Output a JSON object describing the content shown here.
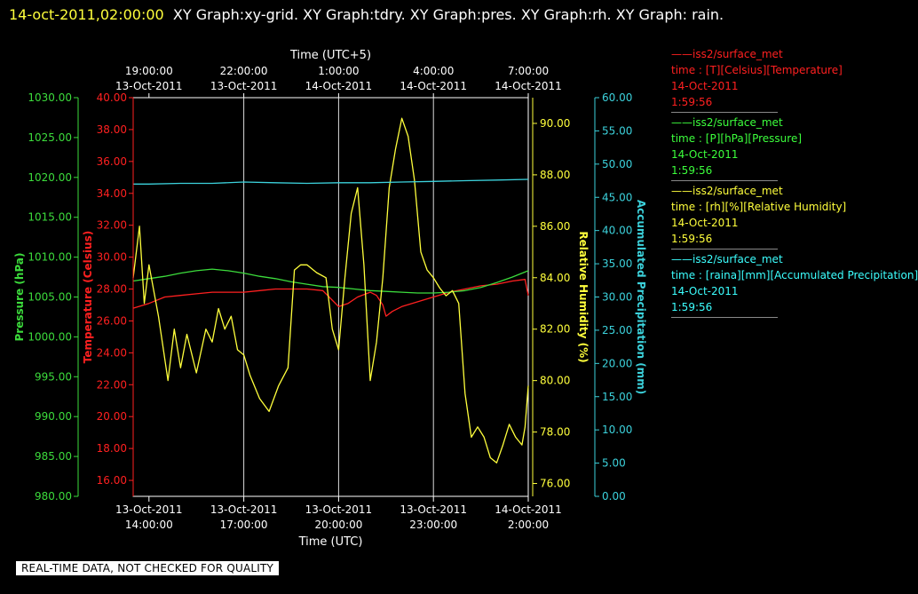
{
  "header": {
    "timestamp": "14-oct-2011,02:00:00",
    "description": "XY Graph:xy-grid.  XY Graph:tdry.  XY Graph:pres.  XY Graph:rh.  XY Graph: rain."
  },
  "quality_banner": "REAL-TIME DATA, NOT CHECKED FOR QUALITY",
  "legend": [
    {
      "name": "——iss2/surface_met",
      "line2": "time : [T][Celsius][Temperature]",
      "line3": "14-Oct-2011",
      "line4": "1:59:56",
      "color": "#ff2020"
    },
    {
      "name": "——iss2/surface_met",
      "line2": "time : [P][hPa][Pressure]",
      "line3": "14-Oct-2011",
      "line4": "1:59:56",
      "color": "#3cff3c"
    },
    {
      "name": "——iss2/surface_met",
      "line2": "time : [rh][%][Relative Humidity]",
      "line3": "14-Oct-2011",
      "line4": "1:59:56",
      "color": "#ffff3c"
    },
    {
      "name": "——iss2/surface_met",
      "line2": "time : [raina][mm][Accumulated Precipitation]",
      "line3": "14-Oct-2011",
      "line4": "1:59:56",
      "color": "#3cffff"
    }
  ],
  "chart_data": {
    "type": "line",
    "x_top_label": "Time (UTC+5)",
    "x_bottom_label": "Time (UTC)",
    "x_range_hours": [
      13.5,
      26
    ],
    "x_ticks_bottom": [
      {
        "date": "13-Oct-2011",
        "time": "14:00:00",
        "hour": 14
      },
      {
        "date": "13-Oct-2011",
        "time": "17:00:00",
        "hour": 17
      },
      {
        "date": "13-Oct-2011",
        "time": "20:00:00",
        "hour": 20
      },
      {
        "date": "13-Oct-2011",
        "time": "23:00:00",
        "hour": 23
      },
      {
        "date": "14-Oct-2011",
        "time": "2:00:00",
        "hour": 26
      }
    ],
    "x_ticks_top": [
      {
        "date": "13-Oct-2011",
        "time": "19:00:00",
        "hour": 14
      },
      {
        "date": "13-Oct-2011",
        "time": "22:00:00",
        "hour": 17
      },
      {
        "date": "14-Oct-2011",
        "time": "1:00:00",
        "hour": 20
      },
      {
        "date": "14-Oct-2011",
        "time": "4:00:00",
        "hour": 23
      },
      {
        "date": "14-Oct-2011",
        "time": "7:00:00",
        "hour": 26
      }
    ],
    "grid": true,
    "axes": {
      "pressure": {
        "label": "Pressure (hPa)",
        "color": "#3cdc3c",
        "ylim": [
          980,
          1030
        ],
        "ticks": [
          "980.00",
          "985.00",
          "990.00",
          "995.00",
          "1000.00",
          "1005.00",
          "1010.00",
          "1015.00",
          "1020.00",
          "1025.00",
          "1030.00"
        ]
      },
      "temperature": {
        "label": "Temperature (Celsius)",
        "color": "#ff2020",
        "ylim": [
          15,
          40
        ],
        "ticks": [
          "16.00",
          "18.00",
          "20.00",
          "22.00",
          "24.00",
          "26.00",
          "28.00",
          "30.00",
          "32.00",
          "34.00",
          "36.00",
          "38.00",
          "40.00"
        ]
      },
      "humidity": {
        "label": "Relative Humidity (%)",
        "color": "#ffff3c",
        "ylim": [
          75.5,
          91
        ],
        "ticks": [
          "76.00",
          "78.00",
          "80.00",
          "82.00",
          "84.00",
          "86.00",
          "88.00",
          "90.00"
        ]
      },
      "precip": {
        "label": "Accumulated Precipitation (mm)",
        "color": "#3cd2dc",
        "ylim": [
          0,
          60
        ],
        "ticks": [
          "0.00",
          "5.00",
          "10.00",
          "15.00",
          "20.00",
          "25.00",
          "30.00",
          "35.00",
          "40.00",
          "45.00",
          "50.00",
          "55.00",
          "60.00"
        ]
      }
    },
    "series": [
      {
        "name": "Temperature",
        "axis": "temperature",
        "color": "#ff2020",
        "x": [
          13.5,
          14,
          14.5,
          15,
          15.5,
          16,
          16.5,
          17,
          17.5,
          18,
          18.5,
          19,
          19.5,
          19.7,
          20,
          20.3,
          20.6,
          21,
          21.2,
          21.4,
          21.5,
          21.7,
          22,
          22.5,
          23,
          23.5,
          24,
          24.5,
          25,
          25.5,
          25.9,
          26
        ],
        "y": [
          26.8,
          27.1,
          27.5,
          27.6,
          27.7,
          27.8,
          27.8,
          27.8,
          27.9,
          28.0,
          28.0,
          28.0,
          27.9,
          27.5,
          26.9,
          27.1,
          27.5,
          27.8,
          27.6,
          27.0,
          26.3,
          26.6,
          26.9,
          27.2,
          27.5,
          27.8,
          28.0,
          28.2,
          28.3,
          28.5,
          28.6,
          27.6
        ]
      },
      {
        "name": "Pressure",
        "axis": "pressure",
        "color": "#3cdc3c",
        "x": [
          13.5,
          14,
          14.5,
          15,
          15.5,
          16,
          16.5,
          17,
          17.5,
          18,
          18.5,
          19,
          19.5,
          20,
          20.5,
          21,
          21.5,
          22,
          22.5,
          23,
          23.5,
          24,
          24.5,
          25,
          25.5,
          26
        ],
        "y": [
          1007.0,
          1007.3,
          1007.6,
          1008.0,
          1008.3,
          1008.5,
          1008.3,
          1008.0,
          1007.6,
          1007.3,
          1006.9,
          1006.6,
          1006.3,
          1006.2,
          1006.0,
          1005.8,
          1005.7,
          1005.6,
          1005.5,
          1005.5,
          1005.6,
          1005.8,
          1006.2,
          1006.8,
          1007.5,
          1008.3
        ]
      },
      {
        "name": "Relative Humidity",
        "axis": "humidity",
        "color": "#ffff3c",
        "x": [
          13.5,
          13.7,
          13.85,
          14,
          14.3,
          14.6,
          14.8,
          15,
          15.2,
          15.5,
          15.8,
          16,
          16.2,
          16.4,
          16.6,
          16.8,
          17,
          17.2,
          17.5,
          17.8,
          18.1,
          18.4,
          18.6,
          18.8,
          19.0,
          19.3,
          19.6,
          19.8,
          20.0,
          20.2,
          20.4,
          20.6,
          20.8,
          21.0,
          21.2,
          21.4,
          21.6,
          21.8,
          22.0,
          22.2,
          22.4,
          22.6,
          22.8,
          23.0,
          23.2,
          23.4,
          23.6,
          23.8,
          24.0,
          24.2,
          24.4,
          24.6,
          24.8,
          25.0,
          25.2,
          25.4,
          25.6,
          25.8,
          25.9,
          26.0
        ],
        "y": [
          84.0,
          86.0,
          83.0,
          84.5,
          82.5,
          80.0,
          82.0,
          80.5,
          81.8,
          80.3,
          82.0,
          81.5,
          82.8,
          82.0,
          82.5,
          81.2,
          81.0,
          80.2,
          79.3,
          78.8,
          79.8,
          80.5,
          84.3,
          84.5,
          84.5,
          84.2,
          84.0,
          82.0,
          81.2,
          84.0,
          86.5,
          87.5,
          84.5,
          80.0,
          81.5,
          84.0,
          87.5,
          89.0,
          90.2,
          89.5,
          87.8,
          85.0,
          84.3,
          84.0,
          83.6,
          83.3,
          83.5,
          83.0,
          79.5,
          77.8,
          78.2,
          77.8,
          77.0,
          76.8,
          77.5,
          78.3,
          77.8,
          77.5,
          78.2,
          79.8
        ]
      },
      {
        "name": "Accumulated Precipitation",
        "axis": "precip",
        "color": "#3cd2dc",
        "x": [
          13.5,
          14,
          15,
          16,
          17,
          18,
          19,
          20,
          21,
          22,
          23,
          24,
          25,
          26
        ],
        "y": [
          47.0,
          47.0,
          47.1,
          47.1,
          47.3,
          47.2,
          47.1,
          47.2,
          47.2,
          47.3,
          47.4,
          47.5,
          47.6,
          47.7
        ]
      }
    ]
  }
}
